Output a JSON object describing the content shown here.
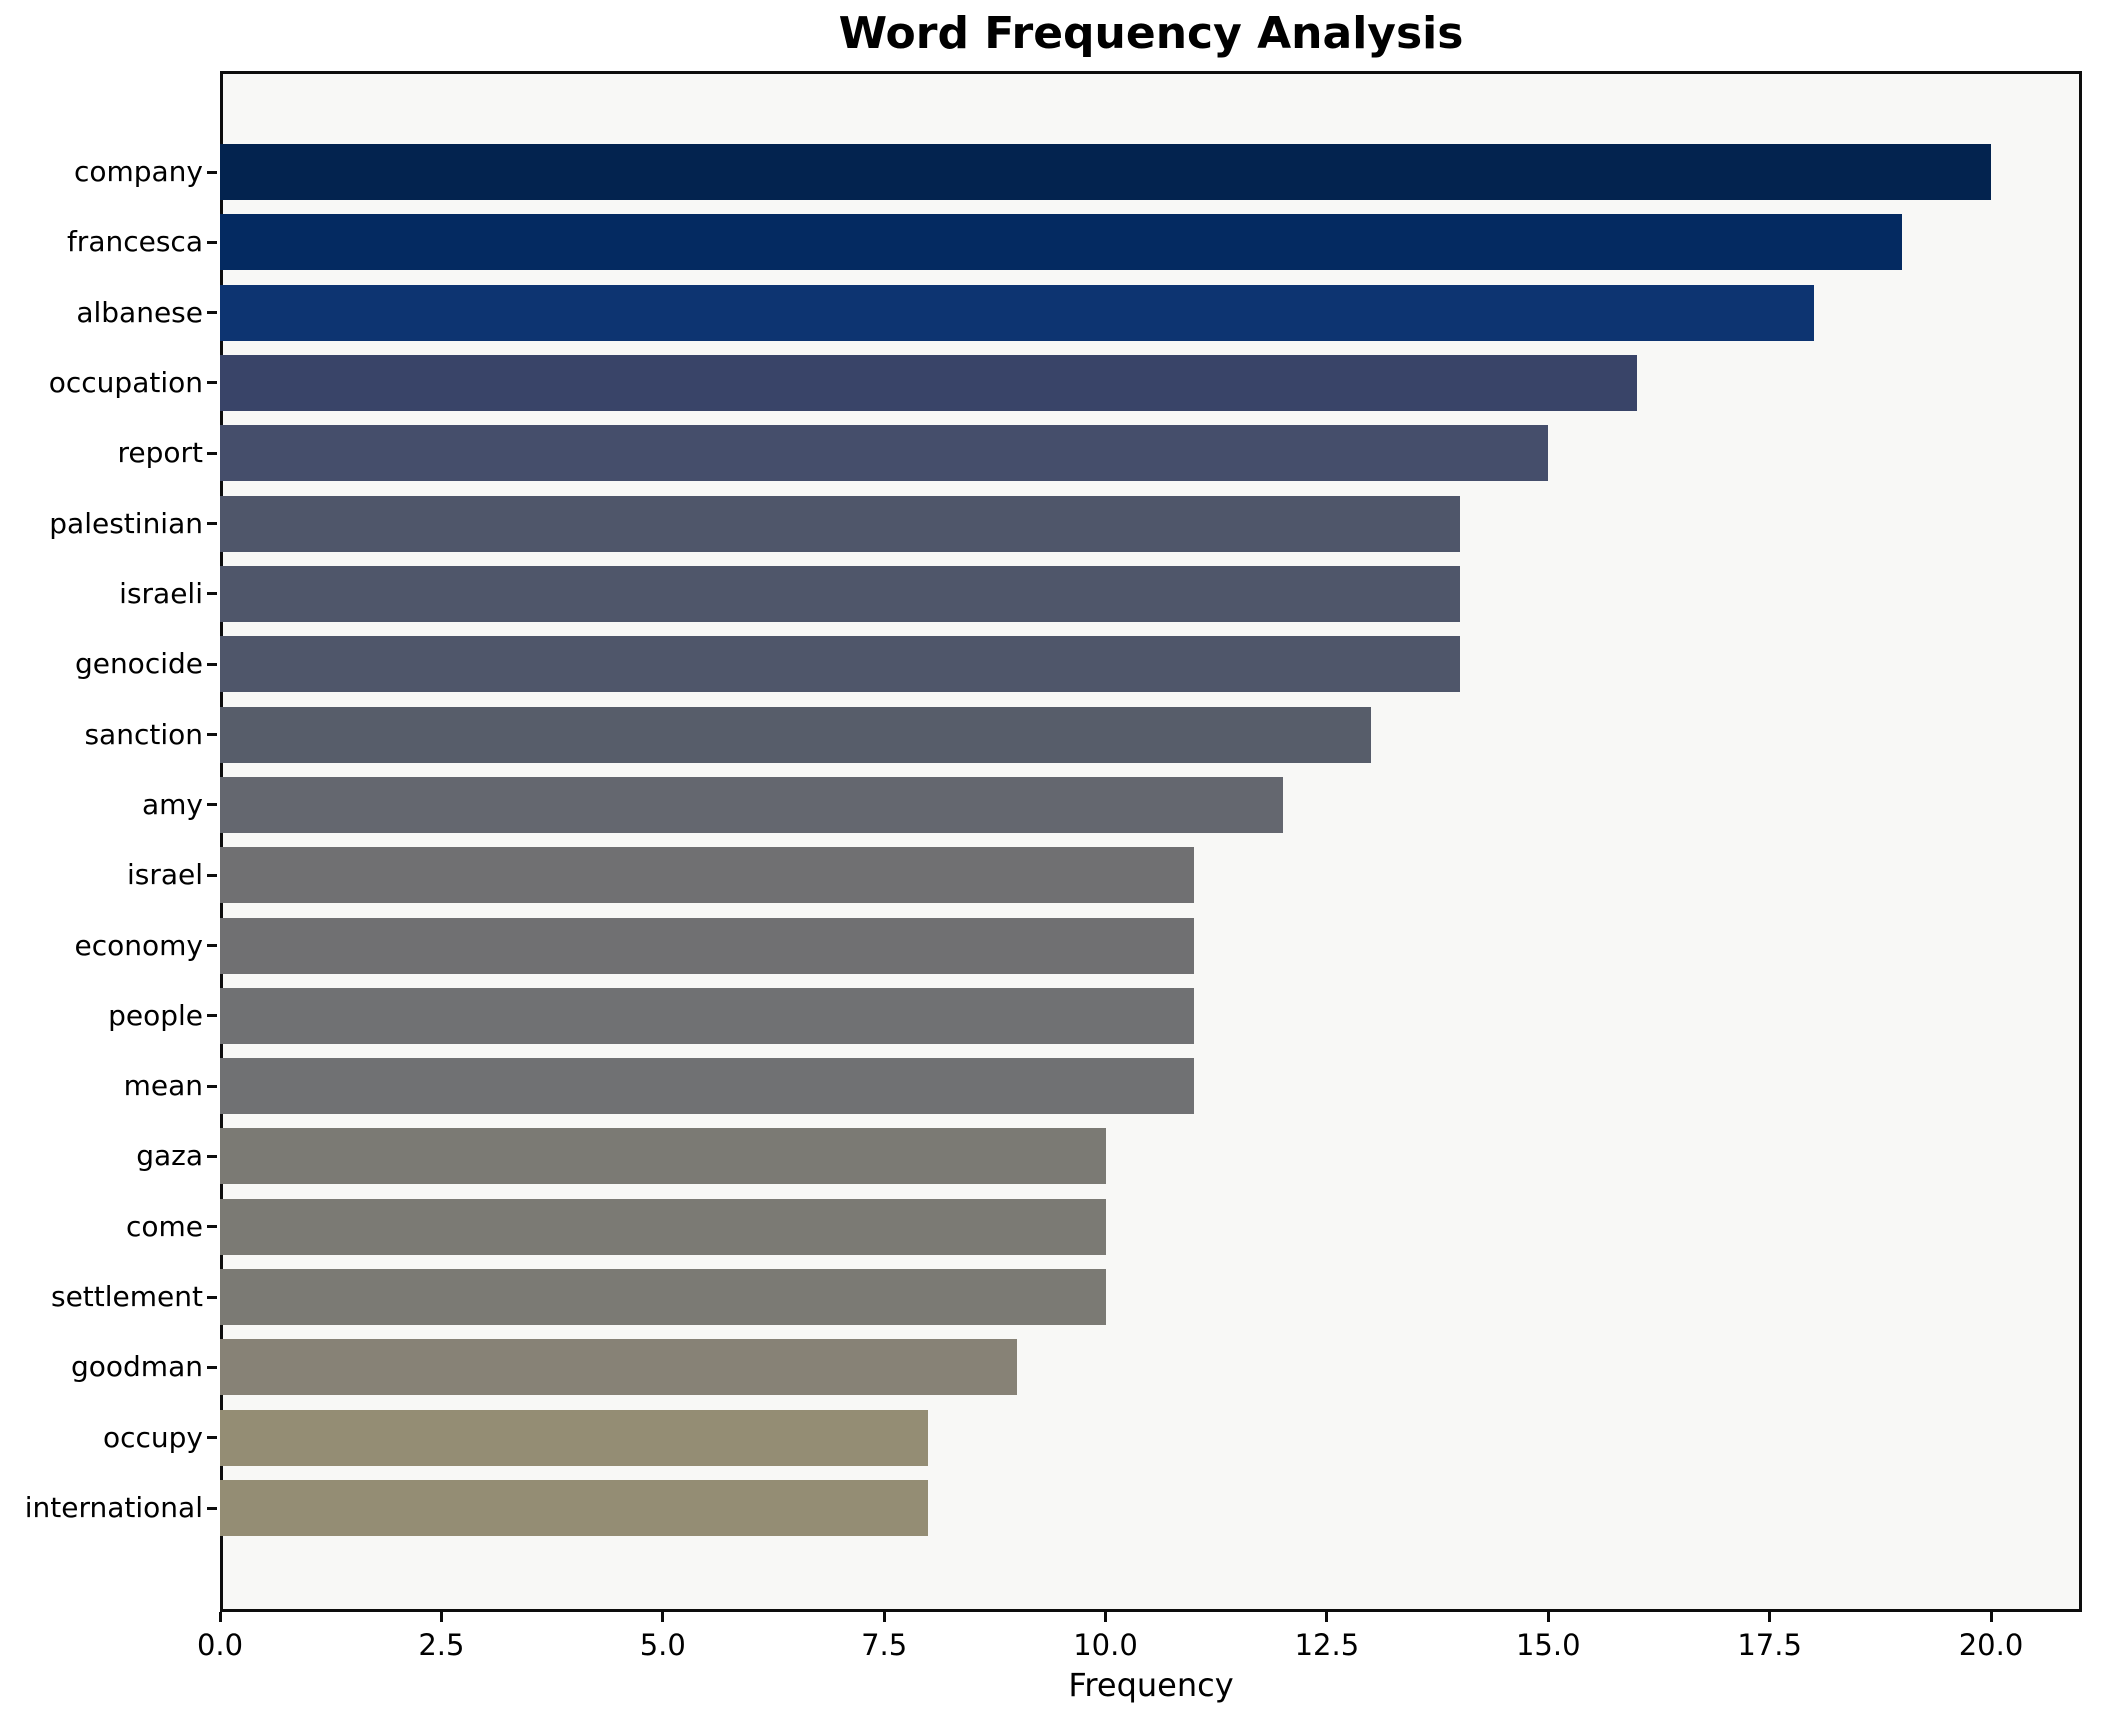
{
  "title": "Word Frequency Analysis",
  "chart_data": {
    "type": "bar",
    "orientation": "horizontal",
    "title": "Word Frequency Analysis",
    "xlabel": "Frequency",
    "ylabel": "",
    "xlim": [
      0,
      21.03
    ],
    "grid": false,
    "legend": "none",
    "plot_background": "#f8f8f6",
    "categories": [
      "company",
      "francesca",
      "albanese",
      "occupation",
      "report",
      "palestinian",
      "israeli",
      "genocide",
      "sanction",
      "amy",
      "israel",
      "economy",
      "people",
      "mean",
      "gaza",
      "come",
      "settlement",
      "goodman",
      "occupy",
      "international"
    ],
    "values": [
      20,
      19,
      18,
      16,
      15,
      14,
      14,
      14,
      13,
      12,
      11,
      11,
      11,
      11,
      10,
      10,
      10,
      9,
      8,
      8
    ],
    "bar_colors": [
      "#03234f",
      "#042a61",
      "#0d3471",
      "#394468",
      "#454e6b",
      "#4f566a",
      "#4f566a",
      "#4f566a",
      "#575d6a",
      "#64676f",
      "#707072",
      "#707072",
      "#707173",
      "#707173",
      "#7b7a74",
      "#7b7a74",
      "#7b7a74",
      "#878276",
      "#948d74",
      "#948d74"
    ],
    "x_ticks": [
      0.0,
      2.5,
      5.0,
      7.5,
      10.0,
      12.5,
      15.0,
      17.5,
      20.0
    ],
    "x_tick_labels": [
      "0.0",
      "2.5",
      "5.0",
      "7.5",
      "10.0",
      "12.5",
      "15.0",
      "17.5",
      "20.0"
    ]
  }
}
